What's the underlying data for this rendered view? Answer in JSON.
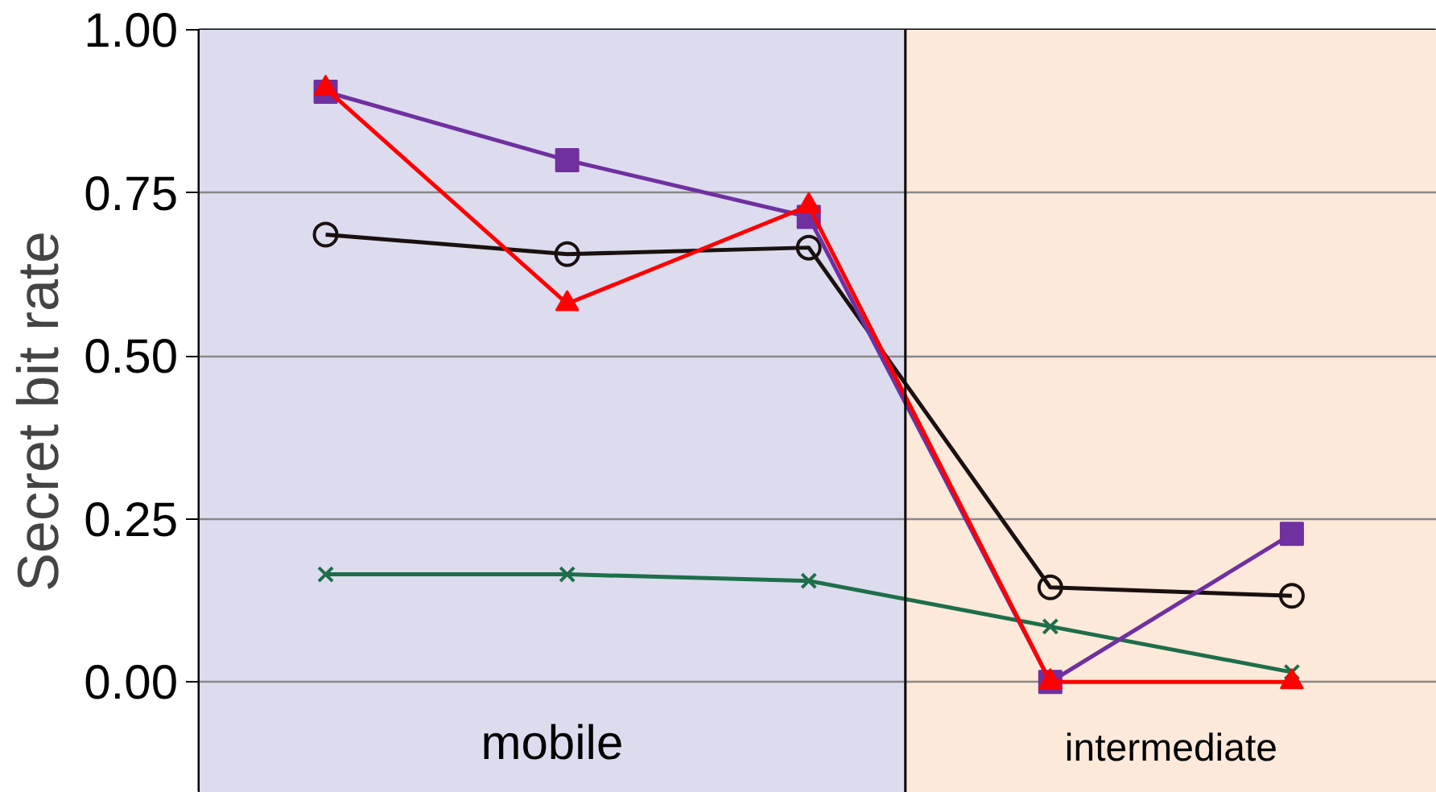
{
  "chart_data": {
    "type": "line",
    "ylabel": "Secret bit rate",
    "categories": [
      null,
      null,
      null,
      null,
      null
    ],
    "ylim": [
      -0.17,
      1.0
    ],
    "yticks": [
      {
        "value": 0,
        "label": "0.00"
      },
      {
        "value": 0.25,
        "label": "0.25"
      },
      {
        "value": 0.5,
        "label": "0.50"
      },
      {
        "value": 0.75,
        "label": "0.75"
      },
      {
        "value": 1,
        "label": "1.00"
      }
    ],
    "grid": "y",
    "tick_labels": "y",
    "series": [
      {
        "color": "#1e6e4a",
        "marker": "cross",
        "values": [
          0.165,
          0.165,
          0.155,
          0.085,
          0.015
        ]
      },
      {
        "color": "#1a1010",
        "marker": "circle",
        "values": [
          0.686,
          0.656,
          0.666,
          0.145,
          0.132
        ]
      },
      {
        "color": "#7030a0",
        "marker": "square",
        "values": [
          0.905,
          0.8,
          0.713,
          0.0,
          0.227
        ]
      },
      {
        "color": "#ff0000",
        "marker": "triangle",
        "values": [
          0.91,
          0.58,
          0.73,
          0.0,
          0.0
        ]
      }
    ],
    "annotations": [
      "mobile",
      "intermediate"
    ]
  }
}
